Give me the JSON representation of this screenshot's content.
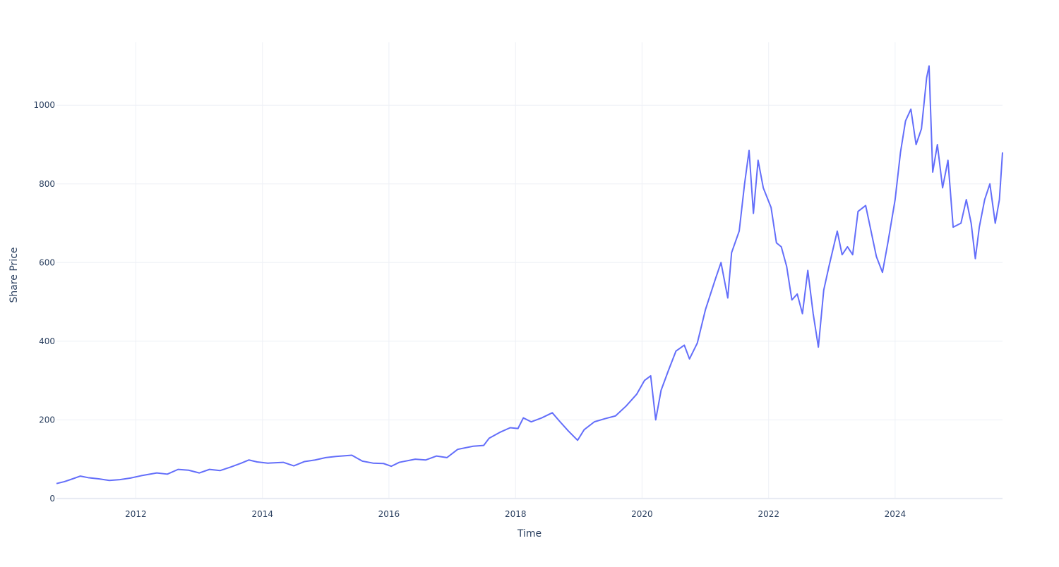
{
  "chart_data": {
    "type": "line",
    "title": "",
    "xlabel": "Time",
    "ylabel": "Share Price",
    "xlim": [
      "2010-09-30",
      "2025-09-12"
    ],
    "ylim": [
      -2,
      1160
    ],
    "grid": true,
    "legend": "none",
    "colors": {
      "line": "#636efa",
      "grid": "#eef0f6",
      "zeroline": "#e7eaf3",
      "text": "#2a3f5f"
    },
    "x_ticks": [
      {
        "value": "2012-01-01",
        "label": "2012"
      },
      {
        "value": "2014-01-01",
        "label": "2014"
      },
      {
        "value": "2016-01-01",
        "label": "2016"
      },
      {
        "value": "2018-01-01",
        "label": "2018"
      },
      {
        "value": "2020-01-01",
        "label": "2020"
      },
      {
        "value": "2022-01-01",
        "label": "2022"
      },
      {
        "value": "2024-01-01",
        "label": "2024"
      }
    ],
    "y_ticks": [
      {
        "value": 0,
        "label": "0"
      },
      {
        "value": 200,
        "label": "200"
      },
      {
        "value": 400,
        "label": "400"
      },
      {
        "value": 600,
        "label": "600"
      },
      {
        "value": 800,
        "label": "800"
      },
      {
        "value": 1000,
        "label": "1000"
      }
    ],
    "series": [
      {
        "points": [
          [
            "2010-09-30",
            38
          ],
          [
            "2010-11-15",
            43
          ],
          [
            "2011-01-01",
            50
          ],
          [
            "2011-02-15",
            57
          ],
          [
            "2011-04-01",
            53
          ],
          [
            "2011-06-01",
            50
          ],
          [
            "2011-08-01",
            46
          ],
          [
            "2011-10-01",
            48
          ],
          [
            "2011-12-01",
            52
          ],
          [
            "2012-02-01",
            58
          ],
          [
            "2012-05-01",
            65
          ],
          [
            "2012-07-01",
            62
          ],
          [
            "2012-09-01",
            74
          ],
          [
            "2012-11-01",
            72
          ],
          [
            "2013-01-01",
            65
          ],
          [
            "2013-03-01",
            74
          ],
          [
            "2013-05-01",
            71
          ],
          [
            "2013-07-01",
            80
          ],
          [
            "2013-09-01",
            90
          ],
          [
            "2013-10-15",
            98
          ],
          [
            "2013-12-01",
            93
          ],
          [
            "2014-02-01",
            90
          ],
          [
            "2014-05-01",
            92
          ],
          [
            "2014-07-01",
            83
          ],
          [
            "2014-09-01",
            94
          ],
          [
            "2014-11-01",
            98
          ],
          [
            "2015-01-01",
            104
          ],
          [
            "2015-03-01",
            107
          ],
          [
            "2015-06-01",
            110
          ],
          [
            "2015-08-01",
            95
          ],
          [
            "2015-10-01",
            90
          ],
          [
            "2015-12-01",
            89
          ],
          [
            "2016-01-15",
            82
          ],
          [
            "2016-03-01",
            92
          ],
          [
            "2016-06-01",
            100
          ],
          [
            "2016-08-01",
            98
          ],
          [
            "2016-10-01",
            108
          ],
          [
            "2016-12-01",
            104
          ],
          [
            "2017-02-01",
            125
          ],
          [
            "2017-05-01",
            133
          ],
          [
            "2017-07-01",
            135
          ],
          [
            "2017-08-01",
            153
          ],
          [
            "2017-10-01",
            168
          ],
          [
            "2017-12-01",
            180
          ],
          [
            "2018-01-15",
            178
          ],
          [
            "2018-02-15",
            205
          ],
          [
            "2018-04-01",
            195
          ],
          [
            "2018-06-01",
            205
          ],
          [
            "2018-08-01",
            218
          ],
          [
            "2018-09-15",
            195
          ],
          [
            "2018-11-01",
            172
          ],
          [
            "2018-12-25",
            148
          ],
          [
            "2019-02-01",
            175
          ],
          [
            "2019-04-01",
            195
          ],
          [
            "2019-06-01",
            203
          ],
          [
            "2019-08-01",
            210
          ],
          [
            "2019-10-01",
            235
          ],
          [
            "2019-12-01",
            265
          ],
          [
            "2020-01-15",
            300
          ],
          [
            "2020-02-20",
            312
          ],
          [
            "2020-03-20",
            200
          ],
          [
            "2020-04-20",
            275
          ],
          [
            "2020-06-01",
            325
          ],
          [
            "2020-07-15",
            375
          ],
          [
            "2020-09-01",
            390
          ],
          [
            "2020-10-01",
            355
          ],
          [
            "2020-11-15",
            395
          ],
          [
            "2021-01-01",
            480
          ],
          [
            "2021-03-01",
            560
          ],
          [
            "2021-04-01",
            600
          ],
          [
            "2021-05-10",
            510
          ],
          [
            "2021-06-01",
            625
          ],
          [
            "2021-07-15",
            680
          ],
          [
            "2021-08-15",
            800
          ],
          [
            "2021-09-10",
            885
          ],
          [
            "2021-10-05",
            725
          ],
          [
            "2021-11-01",
            860
          ],
          [
            "2021-12-01",
            790
          ],
          [
            "2022-01-15",
            740
          ],
          [
            "2022-02-15",
            650
          ],
          [
            "2022-03-15",
            640
          ],
          [
            "2022-04-15",
            590
          ],
          [
            "2022-05-15",
            505
          ],
          [
            "2022-06-15",
            520
          ],
          [
            "2022-07-15",
            470
          ],
          [
            "2022-08-15",
            580
          ],
          [
            "2022-09-15",
            470
          ],
          [
            "2022-10-15",
            385
          ],
          [
            "2022-11-15",
            530
          ],
          [
            "2022-12-15",
            590
          ],
          [
            "2023-02-01",
            680
          ],
          [
            "2023-03-01",
            620
          ],
          [
            "2023-04-01",
            640
          ],
          [
            "2023-05-01",
            620
          ],
          [
            "2023-06-01",
            730
          ],
          [
            "2023-07-15",
            745
          ],
          [
            "2023-08-15",
            680
          ],
          [
            "2023-09-15",
            615
          ],
          [
            "2023-10-20",
            575
          ],
          [
            "2023-11-20",
            650
          ],
          [
            "2024-01-01",
            760
          ],
          [
            "2024-02-01",
            880
          ],
          [
            "2024-03-01",
            960
          ],
          [
            "2024-04-01",
            990
          ],
          [
            "2024-05-01",
            900
          ],
          [
            "2024-06-01",
            940
          ],
          [
            "2024-07-01",
            1070
          ],
          [
            "2024-07-15",
            1100
          ],
          [
            "2024-08-05",
            830
          ],
          [
            "2024-09-01",
            900
          ],
          [
            "2024-10-01",
            790
          ],
          [
            "2024-11-01",
            860
          ],
          [
            "2024-12-01",
            690
          ],
          [
            "2025-01-15",
            700
          ],
          [
            "2025-02-15",
            760
          ],
          [
            "2025-03-15",
            700
          ],
          [
            "2025-04-08",
            610
          ],
          [
            "2025-05-01",
            690
          ],
          [
            "2025-06-01",
            760
          ],
          [
            "2025-07-01",
            800
          ],
          [
            "2025-08-01",
            700
          ],
          [
            "2025-08-25",
            760
          ],
          [
            "2025-09-12",
            880
          ]
        ]
      }
    ]
  }
}
